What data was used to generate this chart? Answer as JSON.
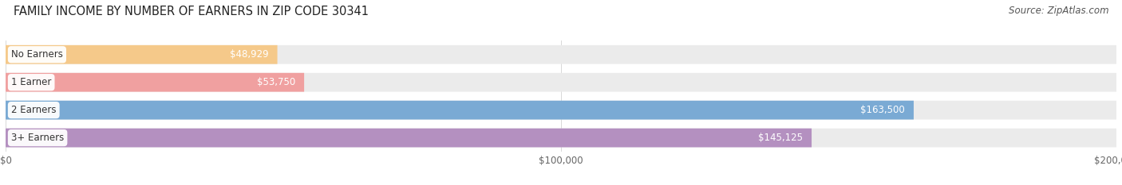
{
  "title": "FAMILY INCOME BY NUMBER OF EARNERS IN ZIP CODE 30341",
  "source": "Source: ZipAtlas.com",
  "categories": [
    "No Earners",
    "1 Earner",
    "2 Earners",
    "3+ Earners"
  ],
  "values": [
    48929,
    53750,
    163500,
    145125
  ],
  "value_labels": [
    "$48,929",
    "$53,750",
    "$163,500",
    "$145,125"
  ],
  "bar_colors": [
    "#f5c98a",
    "#f0a0a0",
    "#7aaad4",
    "#b490c0"
  ],
  "bar_bg_color": "#ebebeb",
  "background_color": "#ffffff",
  "xlim": [
    0,
    200000
  ],
  "xtick_labels": [
    "$0",
    "$100,000",
    "$200,000"
  ],
  "xtick_values": [
    0,
    100000,
    200000
  ],
  "title_fontsize": 10.5,
  "source_fontsize": 8.5,
  "label_fontsize": 8.5,
  "value_fontsize": 8.5,
  "bar_height": 0.68,
  "bar_label_color_inside": "#ffffff",
  "cat_label_color": "#333333",
  "grid_color": "#d8d8d8"
}
